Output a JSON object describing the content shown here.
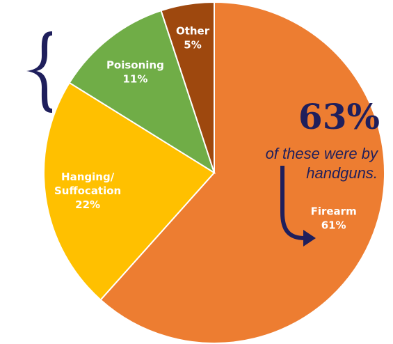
{
  "chart_data": {
    "type": "pie",
    "categories": [
      "Firearm",
      "Hanging/Suffocation",
      "Poisoning",
      "Other"
    ],
    "values": [
      61,
      22,
      11,
      5
    ],
    "value_labels": [
      "61%",
      "22%",
      "11%",
      "5%"
    ],
    "colors": [
      "#ED7D31",
      "#FFC000",
      "#70AD47",
      "#9E480E"
    ],
    "start_angle": 0,
    "direction": "clockwise",
    "annotation": {
      "headline": "63%",
      "lines": [
        "of these were by",
        "handguns."
      ]
    }
  }
}
